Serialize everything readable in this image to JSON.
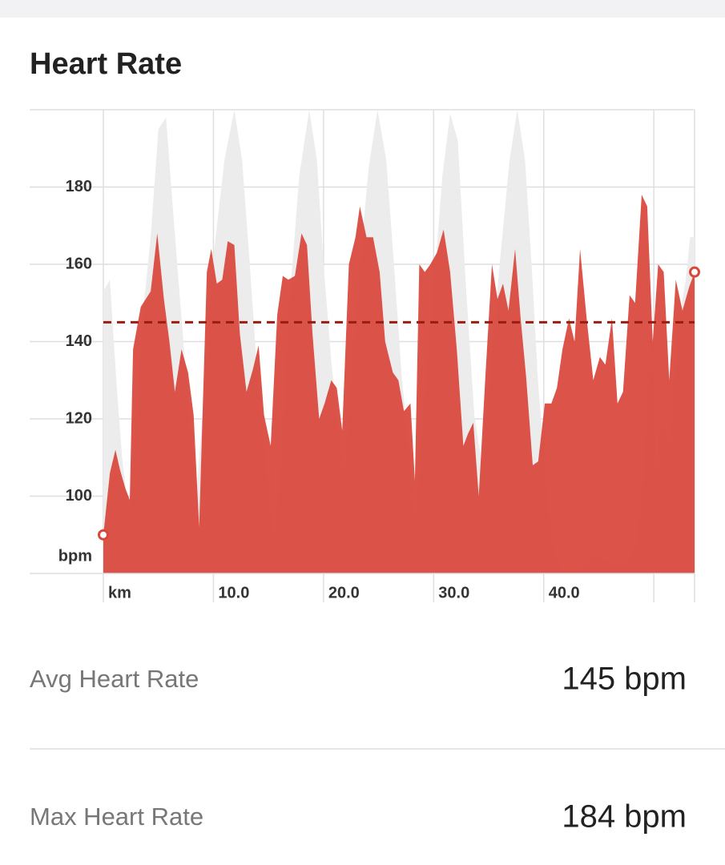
{
  "header": {
    "title": "Heart Rate"
  },
  "chart_data": {
    "type": "area",
    "xlim": [
      0,
      53.7
    ],
    "ylim": [
      80,
      200
    ],
    "xticks": [
      {
        "value": 0,
        "label": "km"
      },
      {
        "value": 10,
        "label": "10.0"
      },
      {
        "value": 20,
        "label": "20.0"
      },
      {
        "value": 30,
        "label": "30.0"
      },
      {
        "value": 40,
        "label": "40.0"
      },
      {
        "value": 50,
        "label": null
      }
    ],
    "yticks": [
      100,
      120,
      140,
      160,
      180
    ],
    "y_unit": "bpm",
    "grid": true,
    "avg_line": {
      "value": 145,
      "color": "#9b1c10"
    },
    "series": [
      {
        "color": "#ececec",
        "x": [
          0,
          0.6,
          1.2,
          1.7,
          2.3,
          2.8,
          3.4,
          4.3,
          5.0,
          5.7,
          6.3,
          7.1,
          7.8,
          8.5,
          9.2,
          10.0,
          11.0,
          11.9,
          12.6,
          13.3,
          14.0,
          14.8,
          15.5,
          16.2,
          16.9,
          17.8,
          18.7,
          19.4,
          20.0,
          20.7,
          21.5,
          21.9,
          22.6,
          23.3,
          24.1,
          24.9,
          25.7,
          26.4,
          27.1,
          27.9,
          28.3,
          29.0,
          29.9,
          30.8,
          31.5,
          32.2,
          32.9,
          33.7,
          34.4,
          35.1,
          36.0,
          36.9,
          37.6,
          38.3,
          38.9,
          39.5,
          40.2,
          40.9,
          41.7,
          43.0,
          44.4,
          45.9,
          47.3,
          48.5,
          49.2,
          49.8,
          50.1,
          50.7,
          51.4,
          52.1,
          52.9,
          53.3,
          53.7
        ],
        "values": [
          153,
          156,
          129,
          110,
          96,
          113,
          142,
          167,
          195,
          198,
          175,
          146,
          121,
          102,
          129,
          162,
          187,
          200,
          187,
          160,
          131,
          108,
          88,
          112,
          150,
          183,
          200,
          187,
          160,
          135,
          113,
          106,
          133,
          160,
          185,
          200,
          187,
          160,
          131,
          108,
          92,
          121,
          150,
          183,
          199,
          192,
          156,
          121,
          108,
          131,
          160,
          187,
          200,
          187,
          160,
          129,
          104,
          85,
          81,
          81,
          85,
          83,
          82,
          88,
          112,
          146,
          104,
          121,
          113,
          142,
          156,
          167,
          167
        ]
      },
      {
        "color": "#d9473b",
        "markers": true,
        "x": [
          0,
          0.6,
          1.1,
          1.5,
          2.0,
          2.4,
          2.7,
          3.4,
          4.3,
          4.9,
          5.5,
          6.0,
          6.5,
          7.1,
          7.7,
          8.2,
          8.7,
          9.4,
          9.8,
          10.3,
          10.8,
          11.3,
          11.9,
          12.4,
          13.0,
          13.6,
          14.1,
          14.6,
          15.2,
          15.8,
          16.3,
          16.8,
          17.4,
          18.0,
          18.5,
          19.0,
          19.6,
          20.1,
          20.7,
          21.2,
          21.7,
          22.3,
          22.9,
          23.3,
          23.9,
          24.5,
          25.1,
          25.6,
          26.3,
          26.8,
          27.3,
          27.9,
          28.3,
          28.7,
          29.2,
          29.7,
          30.3,
          30.9,
          31.5,
          32.1,
          32.7,
          33.1,
          33.6,
          34.1,
          34.7,
          35.3,
          35.8,
          36.3,
          36.8,
          37.4,
          37.9,
          38.4,
          39.0,
          39.5,
          40.1,
          40.7,
          41.2,
          41.7,
          42.3,
          42.8,
          43.3,
          43.9,
          44.5,
          45.1,
          45.6,
          46.2,
          46.7,
          47.2,
          47.8,
          48.3,
          48.9,
          49.4,
          49.9,
          50.4,
          50.9,
          51.4,
          52.0,
          52.6,
          53.2,
          53.7
        ],
        "values": [
          90,
          106,
          112,
          107,
          102,
          99,
          138,
          149,
          153,
          168,
          151,
          140,
          127,
          138,
          132,
          121,
          92,
          158,
          164,
          155,
          156,
          166,
          165,
          142,
          127,
          133,
          139,
          121,
          113,
          147,
          157,
          156,
          157,
          168,
          165,
          142,
          120,
          124,
          130,
          128,
          117,
          160,
          167,
          175,
          167,
          167,
          158,
          140,
          132,
          130,
          122,
          124,
          104,
          160,
          158,
          160,
          163,
          169,
          158,
          138,
          113,
          116,
          119,
          100,
          131,
          160,
          151,
          155,
          148,
          164,
          146,
          131,
          108,
          109,
          124,
          124,
          128,
          138,
          146,
          140,
          164,
          146,
          130,
          136,
          134,
          146,
          124,
          127,
          152,
          150,
          178,
          175,
          140,
          160,
          158,
          130,
          156,
          148,
          154,
          158
        ]
      }
    ]
  },
  "stats": [
    {
      "label": "Avg Heart Rate",
      "value": "145 bpm"
    },
    {
      "label": "Max Heart Rate",
      "value": "184 bpm"
    }
  ]
}
